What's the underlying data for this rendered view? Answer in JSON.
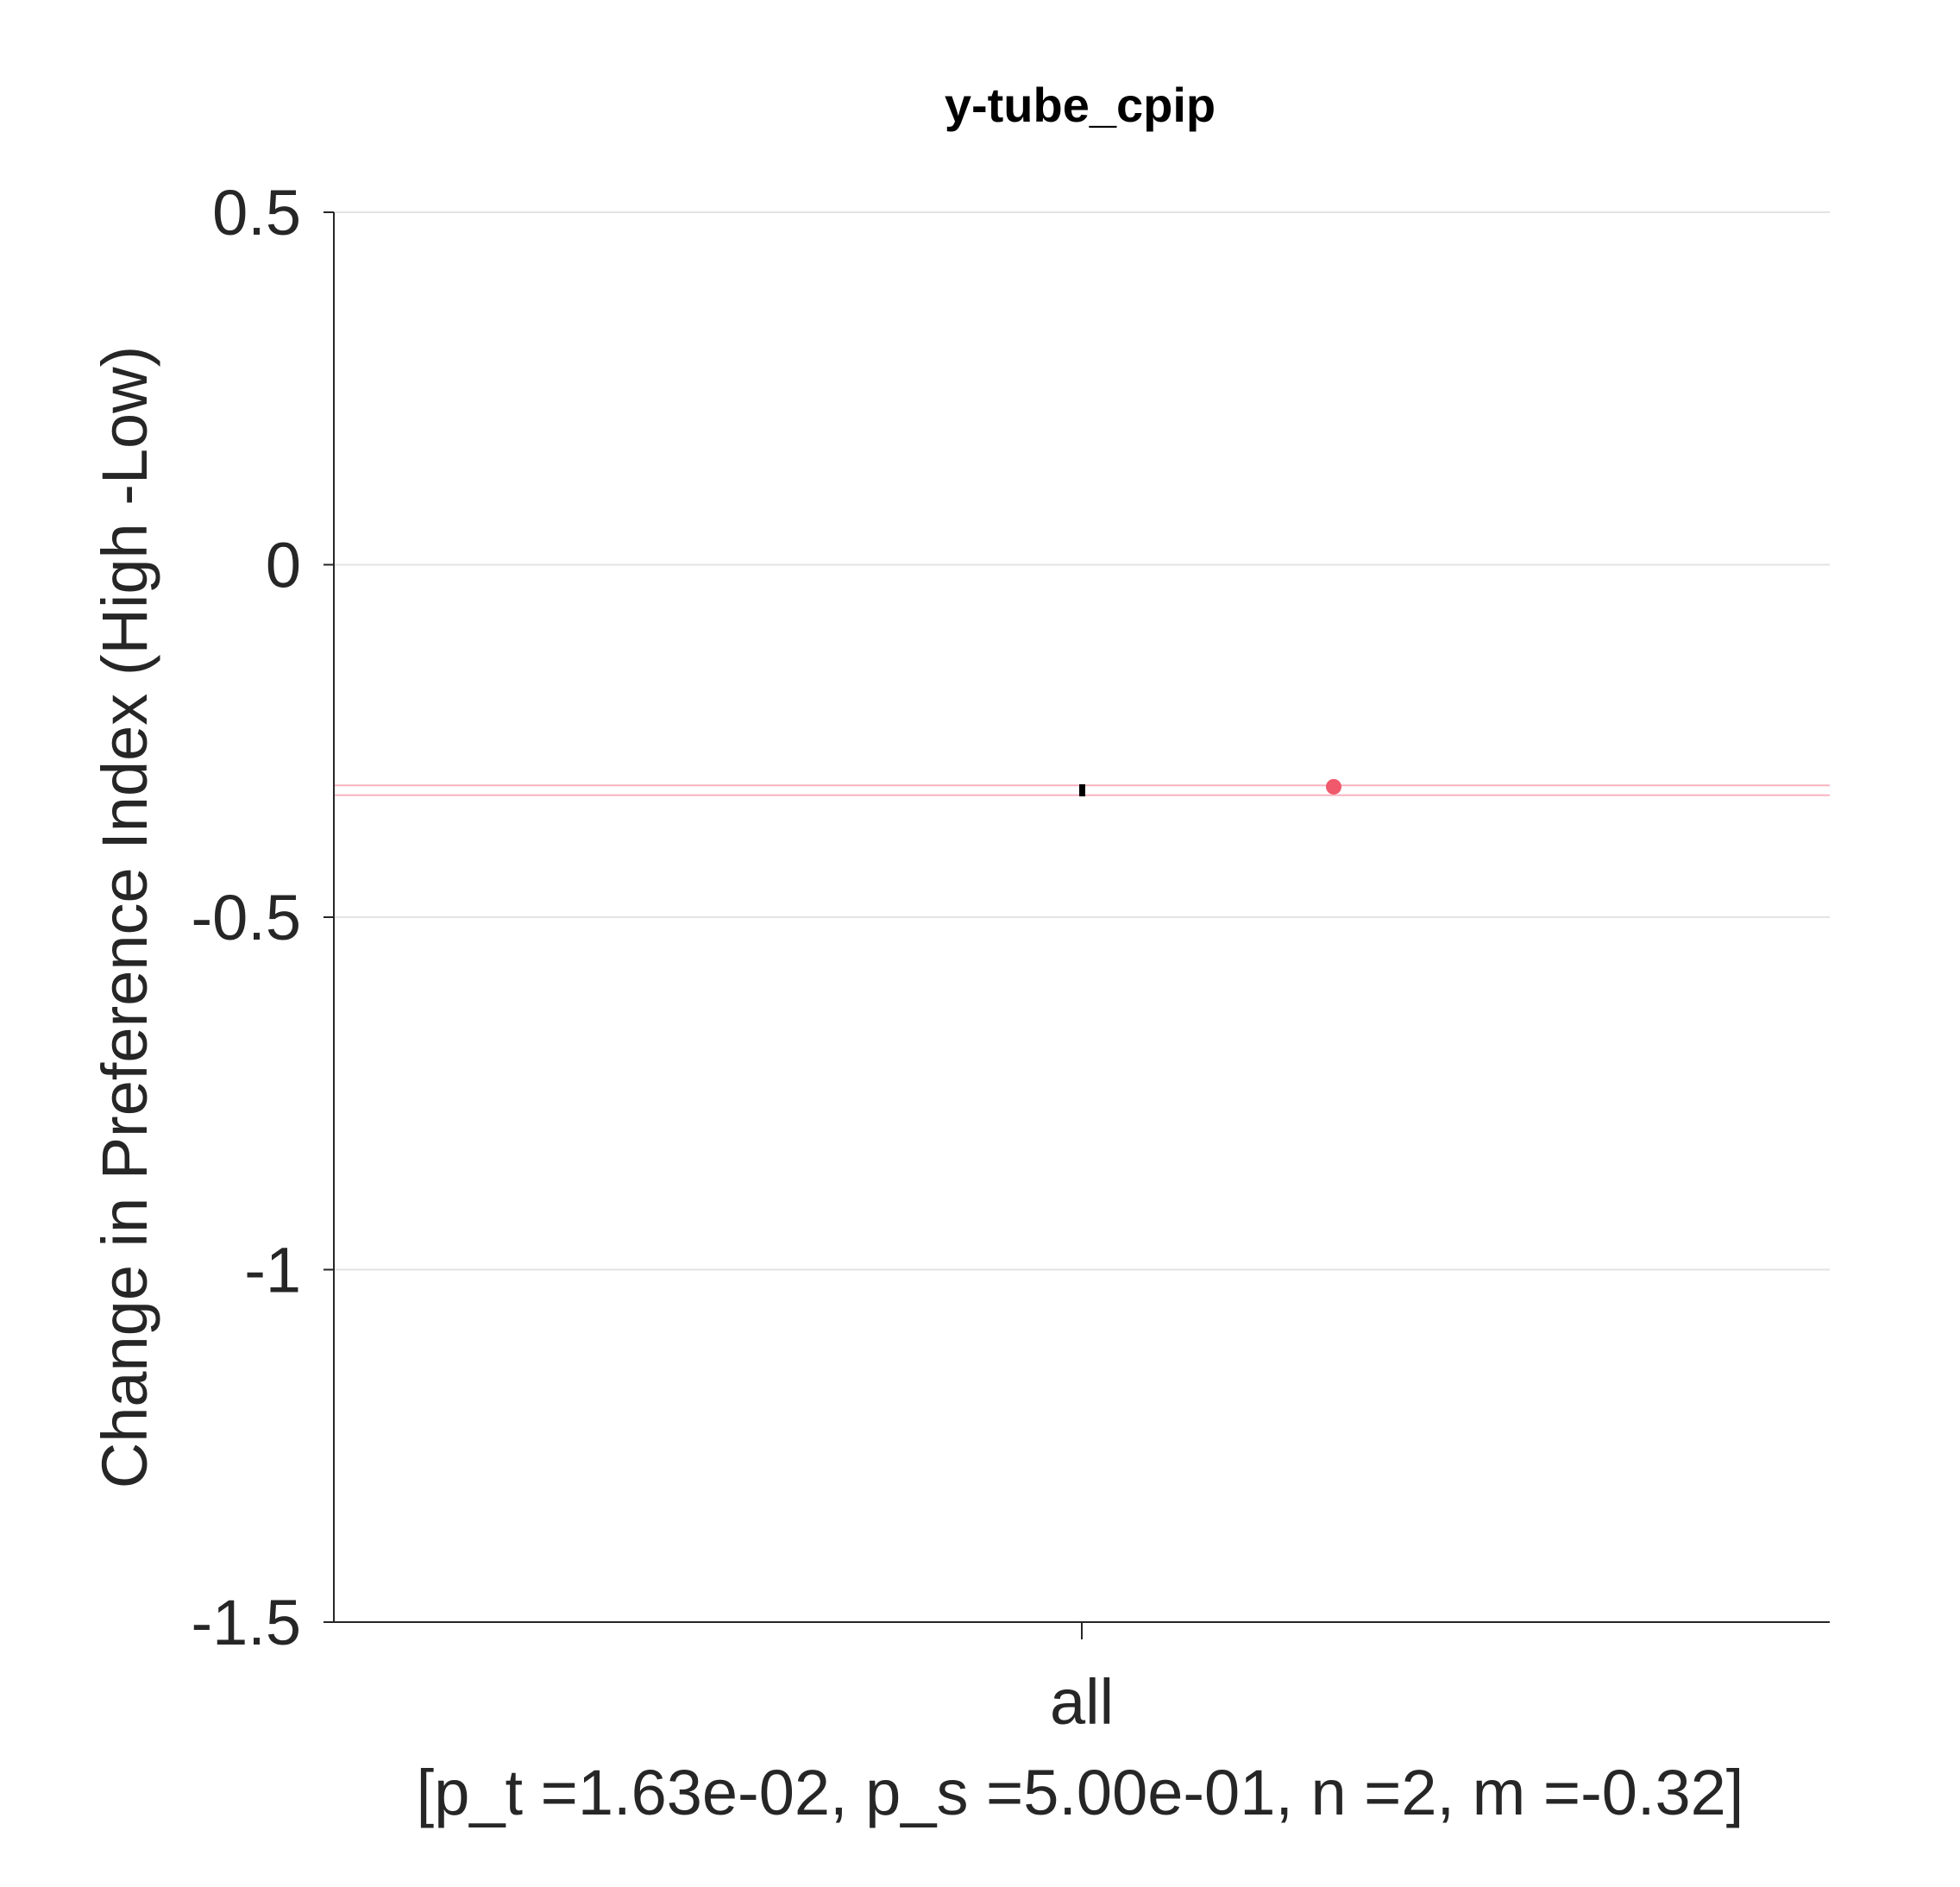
{
  "chart_data": {
    "type": "scatter",
    "title": "y-tube_cpip",
    "ylabel": "Change in Preference Index (High -Low)",
    "xlabel": "",
    "ylim": [
      -1.5,
      0.5
    ],
    "yticks": [
      0.5,
      0,
      -0.5,
      -1,
      -1.5
    ],
    "ytick_labels": [
      "0.5",
      "0",
      "-0.5",
      "-1",
      "-1.5"
    ],
    "grid": "horizontal",
    "categories": [
      "all"
    ],
    "category_annotation": "[p_t =1.63e-02, p_s =5.00e-01, n =2, m =-0.32]",
    "series": [
      {
        "values": [
          -0.315
        ],
        "color": "#f0586c"
      }
    ],
    "mean": -0.32,
    "mean_color": "#000000",
    "individual_lines": [
      -0.313,
      -0.327
    ],
    "individual_line_color": "#f7b3bf"
  }
}
